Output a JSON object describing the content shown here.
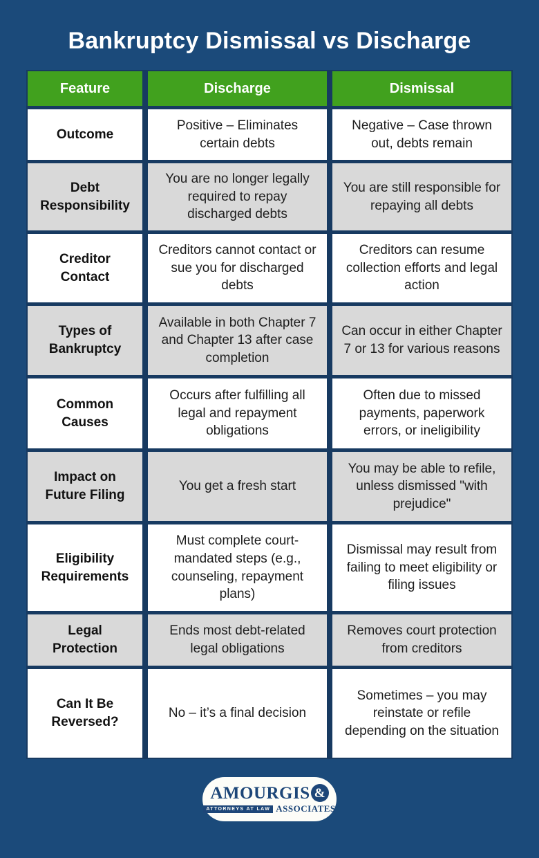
{
  "page": {
    "title": "Bankruptcy Dismissal vs Discharge"
  },
  "colors": {
    "background": "#1b4a7a",
    "divider_navy": "#173a61",
    "header_green": "#41a11e",
    "row_white": "#ffffff",
    "row_gray": "#d9d9d9",
    "text_dark": "#1d1d1d",
    "logo_navy": "#1d4678"
  },
  "table": {
    "headers": [
      "Feature",
      "Discharge",
      "Dismissal"
    ],
    "rows": [
      {
        "feature": "Outcome",
        "discharge": "Positive – Eliminates certain debts",
        "dismissal": "Negative – Case thrown out, debts remain"
      },
      {
        "feature": "Debt Responsibility",
        "discharge": "You are no longer legally required to repay discharged debts",
        "dismissal": "You are still responsible for repaying all debts"
      },
      {
        "feature": "Creditor Contact",
        "discharge": "Creditors cannot contact or sue you for discharged debts",
        "dismissal": "Creditors can resume collection efforts and legal action"
      },
      {
        "feature": "Types of Bankruptcy",
        "discharge": "Available in both Chapter 7 and Chapter 13 after case completion",
        "dismissal": "Can occur in either Chapter 7 or 13 for various reasons"
      },
      {
        "feature": "Common Causes",
        "discharge": "Occurs after fulfilling all legal and repayment obligations",
        "dismissal": "Often due to missed payments, paperwork errors, or ineligibility"
      },
      {
        "feature": "Impact on Future Filing",
        "discharge": "You get a fresh start",
        "dismissal": "You may be able to refile, unless dismissed \"with prejudice\""
      },
      {
        "feature": "Eligibility Requirements",
        "discharge": "Must complete court-mandated steps (e.g., counseling, repayment plans)",
        "dismissal": "Dismissal may result from failing to meet eligibility or filing issues"
      },
      {
        "feature": "Legal Protection",
        "discharge": "Ends most debt-related legal obligations",
        "dismissal": "Removes court protection from creditors"
      },
      {
        "feature": "Can It Be Reversed?",
        "discharge": "No – it’s a final decision",
        "dismissal": "Sometimes – you may reinstate or refile depending on the situation"
      }
    ]
  },
  "logo": {
    "name": "AMOURGIS",
    "ampersand": "&",
    "tagline": "ATTORNEYS AT LAW",
    "associates": "ASSOCIATES"
  }
}
